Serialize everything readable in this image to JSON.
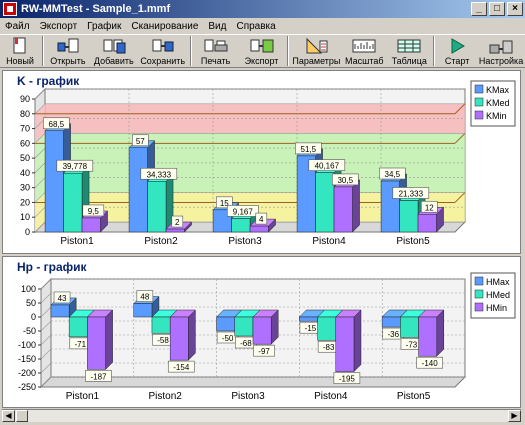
{
  "window": {
    "title": "RW-MMTest - Sample_1.mmf"
  },
  "menu": [
    "Файл",
    "Экспорт",
    "График",
    "Сканирование",
    "Вид",
    "Справка"
  ],
  "toolbar": [
    {
      "label": "Новый",
      "icon": "new-file-icon"
    },
    {
      "label": "Открыть",
      "icon": "open-icon"
    },
    {
      "label": "Добавить",
      "icon": "add-icon"
    },
    {
      "label": "Сохранить",
      "icon": "save-icon"
    },
    {
      "label": "Печать",
      "icon": "print-icon"
    },
    {
      "label": "Экспорт",
      "icon": "export-icon"
    },
    {
      "label": "Параметры",
      "icon": "parameters-icon"
    },
    {
      "label": "Масштаб",
      "icon": "scale-icon"
    },
    {
      "label": "Таблица",
      "icon": "table-icon"
    },
    {
      "label": "Старт",
      "icon": "start-icon"
    },
    {
      "label": "Настройка",
      "icon": "settings-icon"
    }
  ],
  "chart_data": [
    {
      "type": "bar",
      "title": "K - график",
      "categories": [
        "Piston1",
        "Piston2",
        "Piston3",
        "Piston4",
        "Piston5"
      ],
      "series": [
        {
          "name": "KMax",
          "values": [
            68.5,
            57,
            15,
            51.5,
            34.5
          ],
          "labels": [
            "68,5",
            "57",
            "15",
            "51,5",
            "34,5"
          ],
          "color": "#5b9bff"
        },
        {
          "name": "KMed",
          "values": [
            39.778,
            34.333,
            9.167,
            40.167,
            21.333
          ],
          "labels": [
            "39,778",
            "34,333",
            "9,167",
            "40,167",
            "21,333"
          ],
          "color": "#33e6c0"
        },
        {
          "name": "KMin",
          "values": [
            9.5,
            2,
            4,
            30.5,
            12
          ],
          "labels": [
            "9,5",
            "2",
            "4",
            "30,5",
            "12"
          ],
          "color": "#b070ff"
        }
      ],
      "ylim": [
        0,
        90
      ],
      "yticks": [
        0,
        10,
        20,
        30,
        40,
        50,
        60,
        70,
        80,
        90
      ],
      "bands": [
        {
          "from": 0,
          "to": 20,
          "color": "#f5f2a0"
        },
        {
          "from": 20,
          "to": 60,
          "color": "#c8f2b8"
        },
        {
          "from": 60,
          "to": 80,
          "color": "#f7c0c0"
        }
      ],
      "grid": true,
      "legend": "top-right"
    },
    {
      "type": "bar",
      "title": "Hp - график",
      "categories": [
        "Piston1",
        "Piston2",
        "Piston3",
        "Piston4",
        "Piston5"
      ],
      "series": [
        {
          "name": "HMax",
          "values": [
            43,
            48,
            -50,
            -15,
            -36
          ],
          "labels": [
            "43",
            "48",
            "-50",
            "-15",
            "-36"
          ],
          "color": "#5b9bff"
        },
        {
          "name": "HMed",
          "values": [
            -71,
            -58,
            -68,
            -83,
            -73
          ],
          "labels": [
            "-71",
            "-58",
            "-68",
            "-83",
            "-73"
          ],
          "color": "#33e6c0"
        },
        {
          "name": "HMin",
          "values": [
            -187,
            -154,
            -97,
            -195,
            -140
          ],
          "labels": [
            "-187",
            "-154",
            "-97",
            "-195",
            "-140"
          ],
          "color": "#b070ff"
        }
      ],
      "ylim": [
        -250,
        100
      ],
      "yticks": [
        -250,
        -200,
        -150,
        -100,
        -50,
        0,
        50,
        100
      ],
      "bands": [],
      "grid": true,
      "legend": "top-right"
    }
  ]
}
